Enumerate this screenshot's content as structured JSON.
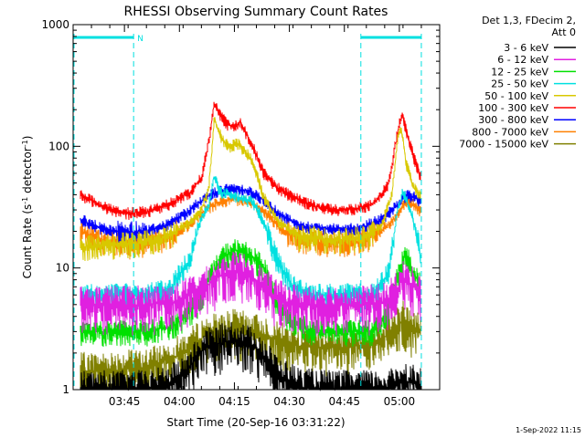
{
  "chart_data": {
    "type": "line",
    "title": "RHESSI Observing Summary Count Rates",
    "xlabel": "Start Time (20-Sep-16 03:31:22)",
    "ylabel_main": "Count Rate (s",
    "ylabel_sup1": "-1",
    "ylabel_mid": " detector",
    "ylabel_sup2": "-1",
    "ylabel_end": ")",
    "y_scale": "log",
    "ylim": [
      1,
      1000
    ],
    "xlim_minutes": [
      0,
      100
    ],
    "x_ticks": [
      {
        "m": 14,
        "label": "03:45"
      },
      {
        "m": 29,
        "label": "04:00"
      },
      {
        "m": 44,
        "label": "04:15"
      },
      {
        "m": 59,
        "label": "04:30"
      },
      {
        "m": 74,
        "label": "04:45"
      },
      {
        "m": 89,
        "label": "05:00"
      }
    ],
    "y_ticks": [
      {
        "v": 1,
        "label": "1"
      },
      {
        "v": 10,
        "label": "10"
      },
      {
        "v": 100,
        "label": "100"
      },
      {
        "v": 1000,
        "label": "1000"
      }
    ],
    "night_intervals": [
      [
        0,
        16.5
      ],
      [
        78.5,
        95
      ]
    ],
    "night_label": "N",
    "legend_header": [
      "Det 1,3, FDecim 2,",
      "Att 0"
    ],
    "legend_placement": "right",
    "grid": false,
    "series": [
      {
        "name": "3 - 6 keV",
        "color": "#000000",
        "points": [
          [
            2,
            1
          ],
          [
            20,
            1
          ],
          [
            26,
            1.1
          ],
          [
            30,
            1.3
          ],
          [
            36,
            2.2
          ],
          [
            44,
            2.6
          ],
          [
            50,
            2.2
          ],
          [
            56,
            1.3
          ],
          [
            62,
            1.05
          ],
          [
            70,
            1
          ],
          [
            80,
            1
          ],
          [
            86,
            1
          ],
          [
            90,
            1.2
          ],
          [
            94,
            1.1
          ]
        ]
      },
      {
        "name": "6 - 12 keV",
        "color": "#e020e0",
        "points": [
          [
            2,
            5
          ],
          [
            20,
            5
          ],
          [
            28,
            5.2
          ],
          [
            36,
            7
          ],
          [
            40,
            8.5
          ],
          [
            44,
            9.5
          ],
          [
            48,
            9
          ],
          [
            52,
            7
          ],
          [
            56,
            5.5
          ],
          [
            62,
            5
          ],
          [
            80,
            5
          ],
          [
            86,
            5.3
          ],
          [
            90,
            8
          ],
          [
            92,
            7.5
          ],
          [
            95,
            6
          ]
        ]
      },
      {
        "name": "12 - 25 keV",
        "color": "#00e000",
        "points": [
          [
            2,
            3
          ],
          [
            20,
            3
          ],
          [
            28,
            3.4
          ],
          [
            34,
            5
          ],
          [
            38,
            9
          ],
          [
            41,
            12.5
          ],
          [
            44,
            14
          ],
          [
            48,
            13
          ],
          [
            52,
            10
          ],
          [
            56,
            5
          ],
          [
            60,
            3.5
          ],
          [
            66,
            3
          ],
          [
            82,
            3
          ],
          [
            86,
            4.5
          ],
          [
            89,
            10
          ],
          [
            91,
            13
          ],
          [
            93,
            9
          ],
          [
            95,
            7
          ]
        ]
      },
      {
        "name": "25 - 50 keV",
        "color": "#00e0e0",
        "points": [
          [
            2,
            6
          ],
          [
            18,
            6
          ],
          [
            26,
            6.5
          ],
          [
            32,
            12
          ],
          [
            35,
            26
          ],
          [
            37,
            32
          ],
          [
            38.5,
            58
          ],
          [
            40,
            42
          ],
          [
            43,
            40
          ],
          [
            46,
            37
          ],
          [
            49,
            35
          ],
          [
            52,
            24
          ],
          [
            56,
            11
          ],
          [
            60,
            7
          ],
          [
            66,
            6
          ],
          [
            82,
            6
          ],
          [
            86,
            9
          ],
          [
            88.5,
            30
          ],
          [
            90,
            42
          ],
          [
            92,
            30
          ],
          [
            94,
            18
          ],
          [
            95,
            11
          ]
        ]
      },
      {
        "name": "50 - 100 keV",
        "color": "#d8c800",
        "points": [
          [
            2,
            15
          ],
          [
            18,
            16
          ],
          [
            26,
            18
          ],
          [
            32,
            24
          ],
          [
            35,
            30
          ],
          [
            37,
            44
          ],
          [
            38.5,
            170
          ],
          [
            39.5,
            140
          ],
          [
            41,
            110
          ],
          [
            43,
            100
          ],
          [
            45,
            105
          ],
          [
            47,
            90
          ],
          [
            49,
            75
          ],
          [
            52,
            38
          ],
          [
            56,
            24
          ],
          [
            62,
            18
          ],
          [
            72,
            17
          ],
          [
            80,
            18
          ],
          [
            84,
            22
          ],
          [
            87,
            40
          ],
          [
            88.5,
            115
          ],
          [
            89.5,
            140
          ],
          [
            91,
            70
          ],
          [
            93,
            45
          ],
          [
            95,
            40
          ]
        ]
      },
      {
        "name": "100 - 300 keV",
        "color": "#ff0000",
        "points": [
          [
            2,
            40
          ],
          [
            8,
            32
          ],
          [
            14,
            28
          ],
          [
            20,
            29
          ],
          [
            26,
            33
          ],
          [
            32,
            42
          ],
          [
            35,
            55
          ],
          [
            37,
            110
          ],
          [
            38.5,
            220
          ],
          [
            40,
            185
          ],
          [
            42,
            150
          ],
          [
            44,
            145
          ],
          [
            45.5,
            160
          ],
          [
            47,
            130
          ],
          [
            49,
            100
          ],
          [
            52,
            60
          ],
          [
            56,
            45
          ],
          [
            60,
            38
          ],
          [
            66,
            32
          ],
          [
            72,
            30
          ],
          [
            78,
            31
          ],
          [
            82,
            34
          ],
          [
            86,
            48
          ],
          [
            88,
            105
          ],
          [
            89,
            155
          ],
          [
            90,
            175
          ],
          [
            91,
            130
          ],
          [
            93,
            80
          ],
          [
            95,
            55
          ]
        ]
      },
      {
        "name": "300 - 800 keV",
        "color": "#0000ff",
        "points": [
          [
            2,
            25
          ],
          [
            8,
            21
          ],
          [
            14,
            19.5
          ],
          [
            20,
            20
          ],
          [
            26,
            23
          ],
          [
            32,
            30
          ],
          [
            36,
            38
          ],
          [
            40,
            43
          ],
          [
            44,
            45
          ],
          [
            48,
            43
          ],
          [
            52,
            36
          ],
          [
            56,
            28
          ],
          [
            62,
            22
          ],
          [
            70,
            21
          ],
          [
            78,
            21
          ],
          [
            84,
            25
          ],
          [
            88,
            32
          ],
          [
            91,
            40
          ],
          [
            93,
            38
          ],
          [
            95,
            35
          ]
        ]
      },
      {
        "name": "800 - 7000 keV",
        "color": "#ff8000",
        "points": [
          [
            2,
            20
          ],
          [
            8,
            16.5
          ],
          [
            14,
            15.5
          ],
          [
            20,
            16
          ],
          [
            26,
            18
          ],
          [
            32,
            23
          ],
          [
            36,
            30
          ],
          [
            40,
            35
          ],
          [
            44,
            37
          ],
          [
            48,
            35
          ],
          [
            52,
            29
          ],
          [
            56,
            22
          ],
          [
            62,
            17
          ],
          [
            70,
            16
          ],
          [
            78,
            16.5
          ],
          [
            84,
            20
          ],
          [
            88,
            26
          ],
          [
            91,
            35
          ],
          [
            93,
            33
          ],
          [
            95,
            29
          ]
        ]
      },
      {
        "name": "7000 - 15000 keV",
        "color": "#808000",
        "points": [
          [
            2,
            1.4
          ],
          [
            20,
            1.5
          ],
          [
            30,
            2
          ],
          [
            36,
            2.8
          ],
          [
            44,
            3.2
          ],
          [
            52,
            2.8
          ],
          [
            60,
            2.3
          ],
          [
            70,
            2.2
          ],
          [
            80,
            2.3
          ],
          [
            86,
            2.8
          ],
          [
            90,
            3.8
          ],
          [
            92,
            3.2
          ],
          [
            95,
            3
          ]
        ]
      }
    ]
  },
  "footer_date": "1-Sep-2022 11:15"
}
